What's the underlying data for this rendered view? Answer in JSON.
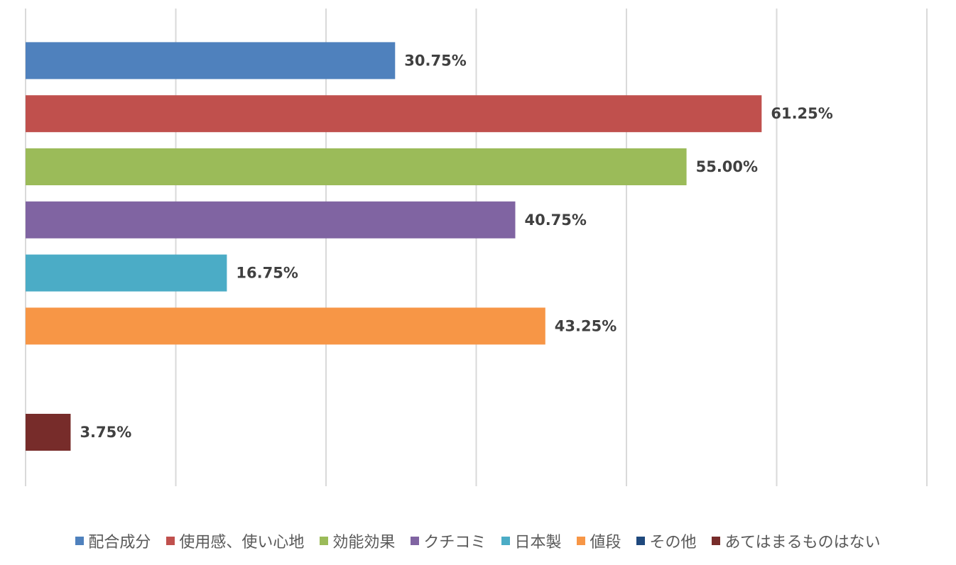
{
  "chart_data": {
    "type": "bar",
    "orientation": "horizontal",
    "xlim": [
      0,
      75
    ],
    "grid": true,
    "legend_position": "bottom",
    "series": [
      {
        "name": "配合成分",
        "value": 30.75,
        "label": "30.75%",
        "color": "#4f81bd"
      },
      {
        "name": "使用感、使い心地",
        "value": 61.25,
        "label": "61.25%",
        "color": "#c0504d"
      },
      {
        "name": "効能効果",
        "value": 55.0,
        "label": "55.00%",
        "color": "#9bbb59"
      },
      {
        "name": "クチコミ",
        "value": 40.75,
        "label": "40.75%",
        "color": "#8064a2"
      },
      {
        "name": "日本製",
        "value": 16.75,
        "label": "16.75%",
        "color": "#4bacc6"
      },
      {
        "name": "値段",
        "value": 43.25,
        "label": "43.25%",
        "color": "#f79646"
      },
      {
        "name": "その他",
        "value": null,
        "label": "",
        "color": "#1f497d"
      },
      {
        "name": "あてはまるものはない",
        "value": 3.75,
        "label": "3.75%",
        "color": "#772c2a"
      }
    ]
  }
}
